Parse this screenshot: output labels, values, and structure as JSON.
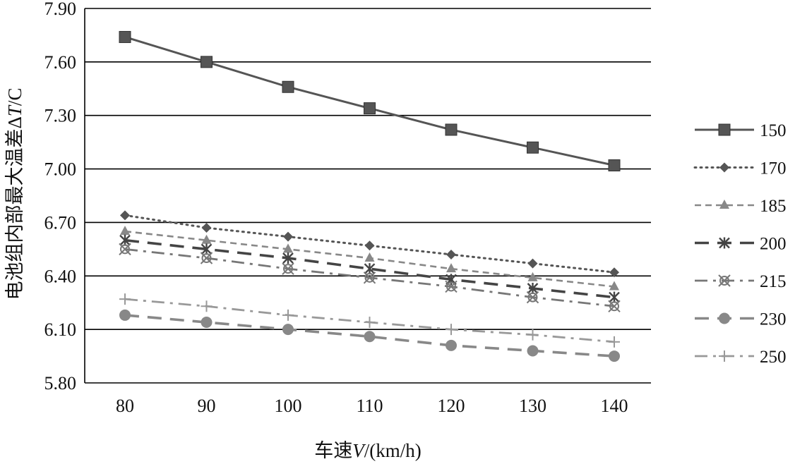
{
  "chart_data": {
    "type": "line",
    "title": "",
    "xlabel_prefix": "车速",
    "xlabel_var": "V",
    "xlabel_suffix": "/(km/h)",
    "ylabel_prefix": "电池组内部最大温差Δ",
    "ylabel_var": "T",
    "ylabel_suffix": "/C",
    "x": [
      80,
      90,
      100,
      110,
      120,
      130,
      140
    ],
    "ylim": [
      5.8,
      7.9
    ],
    "yticks": [
      "5.80",
      "6.10",
      "6.40",
      "6.70",
      "7.00",
      "7.30",
      "7.60",
      "7.90"
    ],
    "ytick_values": [
      5.8,
      6.1,
      6.4,
      6.7,
      7.0,
      7.3,
      7.6,
      7.9
    ],
    "grid": true,
    "legend_position": "right",
    "series": [
      {
        "name": "150",
        "values": [
          7.74,
          7.6,
          7.46,
          7.34,
          7.22,
          7.12,
          7.02
        ],
        "color": "#555555",
        "dash": "solid",
        "marker": "square"
      },
      {
        "name": "170",
        "values": [
          6.74,
          6.67,
          6.62,
          6.57,
          6.52,
          6.47,
          6.42
        ],
        "color": "#555555",
        "dash": "dot",
        "marker": "diamond"
      },
      {
        "name": "185",
        "values": [
          6.65,
          6.6,
          6.55,
          6.5,
          6.44,
          6.39,
          6.34
        ],
        "color": "#888888",
        "dash": "dash",
        "marker": "triangle"
      },
      {
        "name": "200",
        "values": [
          6.6,
          6.55,
          6.5,
          6.44,
          6.38,
          6.33,
          6.28
        ],
        "color": "#444444",
        "dash": "longdash",
        "marker": "star"
      },
      {
        "name": "215",
        "values": [
          6.55,
          6.5,
          6.44,
          6.39,
          6.34,
          6.28,
          6.23
        ],
        "color": "#777777",
        "dash": "dashdot",
        "marker": "cross-circle"
      },
      {
        "name": "230",
        "values": [
          6.18,
          6.14,
          6.1,
          6.06,
          6.01,
          5.98,
          5.95
        ],
        "color": "#888888",
        "dash": "longdash",
        "marker": "circle"
      },
      {
        "name": "250",
        "values": [
          6.27,
          6.23,
          6.18,
          6.14,
          6.1,
          6.07,
          6.03
        ],
        "color": "#999999",
        "dash": "dashdot",
        "marker": "plus"
      }
    ]
  }
}
